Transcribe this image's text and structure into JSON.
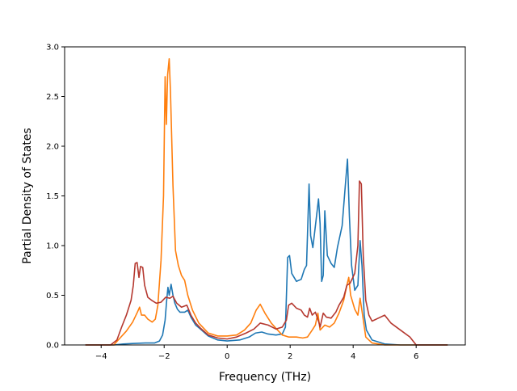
{
  "chart_data": {
    "type": "line",
    "xlabel": "Frequency (THz)",
    "ylabel": "Partial Density of States",
    "xlim": [
      -5.16,
      7.56
    ],
    "ylim": [
      0,
      3.0
    ],
    "x_ticks": [
      -4,
      -2,
      0,
      2,
      4,
      6
    ],
    "y_ticks": [
      0.0,
      0.5,
      1.0,
      1.5,
      2.0,
      2.5,
      3.0
    ],
    "x_tick_labels": [
      "−4",
      "−2",
      "0",
      "2",
      "4",
      "6"
    ],
    "y_tick_labels": [
      "0.0",
      "0.5",
      "1.0",
      "1.5",
      "2.0",
      "2.5",
      "3.0"
    ],
    "grid": false,
    "legend": "none",
    "series": [
      {
        "color": "#1f77b4",
        "points": [
          [
            -4.5,
            0
          ],
          [
            -3.6,
            0
          ],
          [
            -3.3,
            0.01
          ],
          [
            -3.0,
            0.015
          ],
          [
            -2.6,
            0.02
          ],
          [
            -2.3,
            0.02
          ],
          [
            -2.15,
            0.04
          ],
          [
            -2.05,
            0.1
          ],
          [
            -1.97,
            0.25
          ],
          [
            -1.92,
            0.45
          ],
          [
            -1.88,
            0.58
          ],
          [
            -1.84,
            0.5
          ],
          [
            -1.78,
            0.61
          ],
          [
            -1.72,
            0.5
          ],
          [
            -1.66,
            0.42
          ],
          [
            -1.58,
            0.36
          ],
          [
            -1.5,
            0.33
          ],
          [
            -1.35,
            0.33
          ],
          [
            -1.25,
            0.35
          ],
          [
            -1.15,
            0.28
          ],
          [
            -1.0,
            0.2
          ],
          [
            -0.85,
            0.16
          ],
          [
            -0.6,
            0.09
          ],
          [
            -0.3,
            0.05
          ],
          [
            0,
            0.04
          ],
          [
            0.4,
            0.05
          ],
          [
            0.7,
            0.08
          ],
          [
            0.9,
            0.12
          ],
          [
            1.1,
            0.13
          ],
          [
            1.3,
            0.11
          ],
          [
            1.55,
            0.1
          ],
          [
            1.75,
            0.11
          ],
          [
            1.85,
            0.18
          ],
          [
            1.92,
            0.88
          ],
          [
            1.98,
            0.9
          ],
          [
            2.05,
            0.72
          ],
          [
            2.2,
            0.64
          ],
          [
            2.35,
            0.66
          ],
          [
            2.45,
            0.76
          ],
          [
            2.52,
            0.8
          ],
          [
            2.6,
            1.62
          ],
          [
            2.65,
            1.1
          ],
          [
            2.72,
            0.98
          ],
          [
            2.82,
            1.25
          ],
          [
            2.9,
            1.47
          ],
          [
            2.95,
            1.22
          ],
          [
            3.0,
            0.64
          ],
          [
            3.05,
            0.7
          ],
          [
            3.1,
            1.35
          ],
          [
            3.18,
            0.9
          ],
          [
            3.3,
            0.82
          ],
          [
            3.4,
            0.78
          ],
          [
            3.5,
            0.98
          ],
          [
            3.65,
            1.2
          ],
          [
            3.75,
            1.6
          ],
          [
            3.82,
            1.87
          ],
          [
            3.88,
            1.3
          ],
          [
            3.95,
            0.8
          ],
          [
            4.05,
            0.55
          ],
          [
            4.15,
            0.6
          ],
          [
            4.22,
            1.05
          ],
          [
            4.28,
            0.8
          ],
          [
            4.35,
            0.3
          ],
          [
            4.42,
            0.15
          ],
          [
            4.6,
            0.05
          ],
          [
            5.0,
            0.01
          ],
          [
            5.5,
            0
          ],
          [
            7.0,
            0
          ]
        ]
      },
      {
        "color": "#ff7f0e",
        "points": [
          [
            -4.5,
            0
          ],
          [
            -3.6,
            0
          ],
          [
            -3.4,
            0.07
          ],
          [
            -3.2,
            0.14
          ],
          [
            -3.0,
            0.23
          ],
          [
            -2.85,
            0.33
          ],
          [
            -2.78,
            0.38
          ],
          [
            -2.72,
            0.3
          ],
          [
            -2.62,
            0.3
          ],
          [
            -2.52,
            0.26
          ],
          [
            -2.38,
            0.23
          ],
          [
            -2.28,
            0.26
          ],
          [
            -2.2,
            0.4
          ],
          [
            -2.1,
            0.85
          ],
          [
            -2.02,
            1.5
          ],
          [
            -1.97,
            2.7
          ],
          [
            -1.93,
            2.22
          ],
          [
            -1.89,
            2.72
          ],
          [
            -1.84,
            2.88
          ],
          [
            -1.8,
            2.55
          ],
          [
            -1.72,
            1.6
          ],
          [
            -1.64,
            0.95
          ],
          [
            -1.55,
            0.8
          ],
          [
            -1.45,
            0.7
          ],
          [
            -1.35,
            0.65
          ],
          [
            -1.25,
            0.5
          ],
          [
            -1.1,
            0.35
          ],
          [
            -0.9,
            0.22
          ],
          [
            -0.6,
            0.12
          ],
          [
            -0.3,
            0.09
          ],
          [
            0,
            0.09
          ],
          [
            0.3,
            0.1
          ],
          [
            0.55,
            0.15
          ],
          [
            0.75,
            0.22
          ],
          [
            0.92,
            0.35
          ],
          [
            1.05,
            0.41
          ],
          [
            1.2,
            0.32
          ],
          [
            1.4,
            0.22
          ],
          [
            1.6,
            0.15
          ],
          [
            1.75,
            0.1
          ],
          [
            1.95,
            0.08
          ],
          [
            2.2,
            0.08
          ],
          [
            2.4,
            0.07
          ],
          [
            2.55,
            0.08
          ],
          [
            2.7,
            0.15
          ],
          [
            2.8,
            0.2
          ],
          [
            2.88,
            0.32
          ],
          [
            2.95,
            0.15
          ],
          [
            3.1,
            0.2
          ],
          [
            3.25,
            0.18
          ],
          [
            3.4,
            0.22
          ],
          [
            3.55,
            0.32
          ],
          [
            3.7,
            0.45
          ],
          [
            3.8,
            0.6
          ],
          [
            3.86,
            0.68
          ],
          [
            3.92,
            0.5
          ],
          [
            4.05,
            0.36
          ],
          [
            4.15,
            0.3
          ],
          [
            4.22,
            0.47
          ],
          [
            4.3,
            0.3
          ],
          [
            4.4,
            0.08
          ],
          [
            4.6,
            0.02
          ],
          [
            5.0,
            0
          ],
          [
            7.0,
            0
          ]
        ]
      },
      {
        "color": "#b5382f",
        "points": [
          [
            -4.5,
            0
          ],
          [
            -3.7,
            0
          ],
          [
            -3.5,
            0.05
          ],
          [
            -3.35,
            0.18
          ],
          [
            -3.2,
            0.3
          ],
          [
            -3.05,
            0.45
          ],
          [
            -2.98,
            0.6
          ],
          [
            -2.92,
            0.82
          ],
          [
            -2.86,
            0.83
          ],
          [
            -2.8,
            0.68
          ],
          [
            -2.75,
            0.79
          ],
          [
            -2.68,
            0.78
          ],
          [
            -2.62,
            0.6
          ],
          [
            -2.52,
            0.48
          ],
          [
            -2.4,
            0.45
          ],
          [
            -2.25,
            0.42
          ],
          [
            -2.1,
            0.43
          ],
          [
            -1.95,
            0.48
          ],
          [
            -1.82,
            0.47
          ],
          [
            -1.72,
            0.49
          ],
          [
            -1.6,
            0.42
          ],
          [
            -1.45,
            0.38
          ],
          [
            -1.28,
            0.4
          ],
          [
            -1.15,
            0.3
          ],
          [
            -1.0,
            0.22
          ],
          [
            -0.85,
            0.17
          ],
          [
            -0.6,
            0.1
          ],
          [
            -0.3,
            0.07
          ],
          [
            0,
            0.06
          ],
          [
            0.3,
            0.08
          ],
          [
            0.6,
            0.12
          ],
          [
            0.85,
            0.16
          ],
          [
            1.05,
            0.22
          ],
          [
            1.3,
            0.2
          ],
          [
            1.55,
            0.16
          ],
          [
            1.75,
            0.18
          ],
          [
            1.88,
            0.25
          ],
          [
            1.95,
            0.4
          ],
          [
            2.05,
            0.42
          ],
          [
            2.2,
            0.37
          ],
          [
            2.35,
            0.35
          ],
          [
            2.45,
            0.3
          ],
          [
            2.55,
            0.28
          ],
          [
            2.62,
            0.37
          ],
          [
            2.7,
            0.3
          ],
          [
            2.8,
            0.33
          ],
          [
            2.9,
            0.24
          ],
          [
            2.95,
            0.18
          ],
          [
            3.05,
            0.32
          ],
          [
            3.15,
            0.28
          ],
          [
            3.3,
            0.27
          ],
          [
            3.45,
            0.33
          ],
          [
            3.55,
            0.4
          ],
          [
            3.7,
            0.48
          ],
          [
            3.8,
            0.6
          ],
          [
            3.9,
            0.62
          ],
          [
            4.05,
            0.72
          ],
          [
            4.15,
            1.0
          ],
          [
            4.2,
            1.65
          ],
          [
            4.26,
            1.62
          ],
          [
            4.32,
            0.9
          ],
          [
            4.4,
            0.45
          ],
          [
            4.5,
            0.3
          ],
          [
            4.6,
            0.24
          ],
          [
            4.8,
            0.27
          ],
          [
            5.0,
            0.3
          ],
          [
            5.2,
            0.22
          ],
          [
            5.5,
            0.15
          ],
          [
            5.8,
            0.08
          ],
          [
            6.0,
            0.0
          ],
          [
            7.0,
            0
          ]
        ]
      }
    ]
  }
}
